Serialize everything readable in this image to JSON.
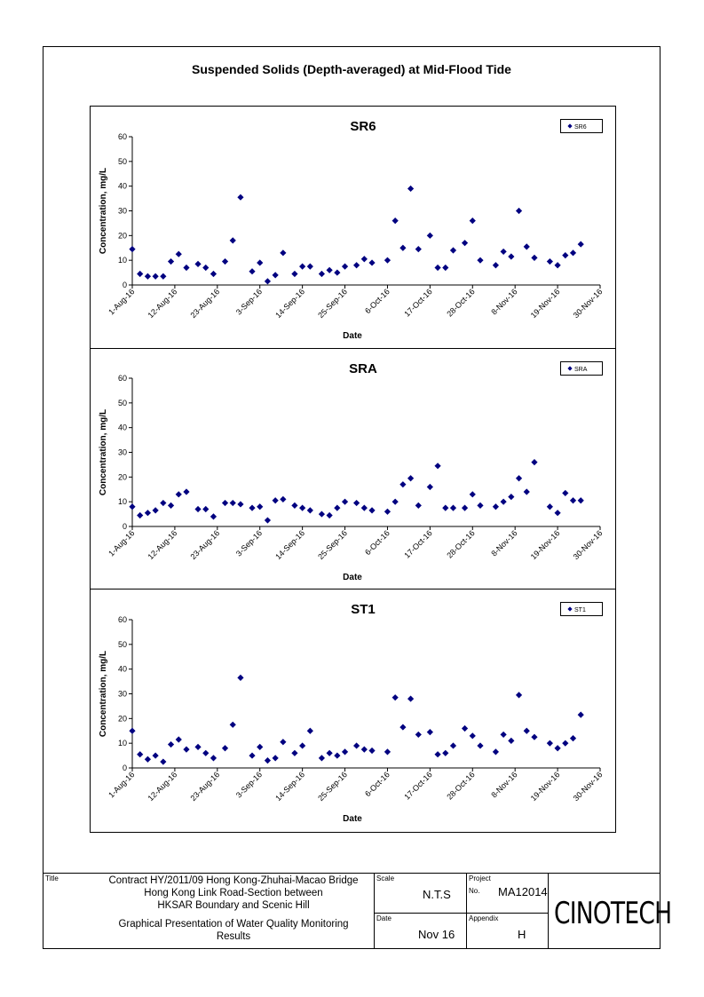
{
  "page": {
    "title": "Suspended Solids (Depth-averaged) at Mid-Flood Tide"
  },
  "chart_data": [
    {
      "type": "scatter",
      "title": "SR6",
      "xlabel": "Date",
      "ylabel": "Concentration, mg/L",
      "ylim": [
        0,
        60
      ],
      "yticks": [
        0,
        10,
        20,
        30,
        40,
        50,
        60
      ],
      "xlim": [
        "1-Aug-16",
        "30-Nov-16"
      ],
      "xticks": [
        "1-Aug-16",
        "12-Aug-16",
        "23-Aug-16",
        "3-Sep-16",
        "14-Sep-16",
        "25-Sep-16",
        "6-Oct-16",
        "17-Oct-16",
        "28-Oct-16",
        "8-Nov-16",
        "19-Nov-16",
        "30-Nov-16"
      ],
      "legend": "top-right",
      "series": [
        {
          "name": "SR6",
          "marker": "diamond",
          "color": "#000080",
          "points": [
            [
              "1-Aug-16",
              14.5
            ],
            [
              "3-Aug-16",
              4.5
            ],
            [
              "5-Aug-16",
              3.5
            ],
            [
              "7-Aug-16",
              3.5
            ],
            [
              "9-Aug-16",
              3.5
            ],
            [
              "11-Aug-16",
              9.5
            ],
            [
              "13-Aug-16",
              12.5
            ],
            [
              "15-Aug-16",
              7
            ],
            [
              "18-Aug-16",
              8.5
            ],
            [
              "20-Aug-16",
              7
            ],
            [
              "22-Aug-16",
              4.5
            ],
            [
              "25-Aug-16",
              9.5
            ],
            [
              "27-Aug-16",
              18
            ],
            [
              "29-Aug-16",
              35.5
            ],
            [
              "1-Sep-16",
              5.5
            ],
            [
              "3-Sep-16",
              9
            ],
            [
              "5-Sep-16",
              1.5
            ],
            [
              "7-Sep-16",
              4
            ],
            [
              "9-Sep-16",
              13
            ],
            [
              "12-Sep-16",
              4.5
            ],
            [
              "14-Sep-16",
              7.5
            ],
            [
              "16-Sep-16",
              7.5
            ],
            [
              "19-Sep-16",
              4.5
            ],
            [
              "21-Sep-16",
              6
            ],
            [
              "23-Sep-16",
              5
            ],
            [
              "25-Sep-16",
              7.5
            ],
            [
              "28-Sep-16",
              8
            ],
            [
              "30-Sep-16",
              10.5
            ],
            [
              "2-Oct-16",
              9
            ],
            [
              "6-Oct-16",
              10
            ],
            [
              "8-Oct-16",
              26
            ],
            [
              "10-Oct-16",
              15
            ],
            [
              "12-Oct-16",
              39
            ],
            [
              "14-Oct-16",
              14.5
            ],
            [
              "17-Oct-16",
              20
            ],
            [
              "19-Oct-16",
              7
            ],
            [
              "21-Oct-16",
              7
            ],
            [
              "23-Oct-16",
              14
            ],
            [
              "26-Oct-16",
              17
            ],
            [
              "28-Oct-16",
              26
            ],
            [
              "30-Oct-16",
              10
            ],
            [
              "3-Nov-16",
              8
            ],
            [
              "5-Nov-16",
              13.5
            ],
            [
              "7-Nov-16",
              11.5
            ],
            [
              "9-Nov-16",
              30
            ],
            [
              "11-Nov-16",
              15.5
            ],
            [
              "13-Nov-16",
              11
            ],
            [
              "17-Nov-16",
              9.5
            ],
            [
              "19-Nov-16",
              8
            ],
            [
              "21-Nov-16",
              12
            ],
            [
              "23-Nov-16",
              13
            ],
            [
              "25-Nov-16",
              16.5
            ]
          ]
        }
      ]
    },
    {
      "type": "scatter",
      "title": "SRA",
      "xlabel": "Date",
      "ylabel": "Concentration, mg/L",
      "ylim": [
        0,
        60
      ],
      "yticks": [
        0,
        10,
        20,
        30,
        40,
        50,
        60
      ],
      "xlim": [
        "1-Aug-16",
        "30-Nov-16"
      ],
      "xticks": [
        "1-Aug-16",
        "12-Aug-16",
        "23-Aug-16",
        "3-Sep-16",
        "14-Sep-16",
        "25-Sep-16",
        "6-Oct-16",
        "17-Oct-16",
        "28-Oct-16",
        "8-Nov-16",
        "19-Nov-16",
        "30-Nov-16"
      ],
      "legend": "top-right",
      "series": [
        {
          "name": "SRA",
          "marker": "diamond",
          "color": "#000080",
          "points": [
            [
              "1-Aug-16",
              8
            ],
            [
              "3-Aug-16",
              4.5
            ],
            [
              "5-Aug-16",
              5.5
            ],
            [
              "7-Aug-16",
              6.5
            ],
            [
              "9-Aug-16",
              9.5
            ],
            [
              "11-Aug-16",
              8.5
            ],
            [
              "13-Aug-16",
              13
            ],
            [
              "15-Aug-16",
              14
            ],
            [
              "18-Aug-16",
              7
            ],
            [
              "20-Aug-16",
              7
            ],
            [
              "22-Aug-16",
              4
            ],
            [
              "25-Aug-16",
              9.5
            ],
            [
              "27-Aug-16",
              9.5
            ],
            [
              "29-Aug-16",
              9
            ],
            [
              "1-Sep-16",
              7.5
            ],
            [
              "3-Sep-16",
              8
            ],
            [
              "5-Sep-16",
              2.5
            ],
            [
              "7-Sep-16",
              10.5
            ],
            [
              "9-Sep-16",
              11
            ],
            [
              "12-Sep-16",
              8.5
            ],
            [
              "14-Sep-16",
              7.5
            ],
            [
              "16-Sep-16",
              6.5
            ],
            [
              "19-Sep-16",
              5
            ],
            [
              "21-Sep-16",
              4.5
            ],
            [
              "23-Sep-16",
              7.5
            ],
            [
              "25-Sep-16",
              10
            ],
            [
              "28-Sep-16",
              9.5
            ],
            [
              "30-Sep-16",
              7.5
            ],
            [
              "2-Oct-16",
              6.5
            ],
            [
              "6-Oct-16",
              6
            ],
            [
              "8-Oct-16",
              10
            ],
            [
              "10-Oct-16",
              17
            ],
            [
              "12-Oct-16",
              19.5
            ],
            [
              "14-Oct-16",
              8.5
            ],
            [
              "17-Oct-16",
              16
            ],
            [
              "19-Oct-16",
              24.5
            ],
            [
              "21-Oct-16",
              7.5
            ],
            [
              "23-Oct-16",
              7.5
            ],
            [
              "26-Oct-16",
              7.5
            ],
            [
              "28-Oct-16",
              13
            ],
            [
              "30-Oct-16",
              8.5
            ],
            [
              "3-Nov-16",
              8
            ],
            [
              "5-Nov-16",
              10
            ],
            [
              "7-Nov-16",
              12
            ],
            [
              "9-Nov-16",
              19.5
            ],
            [
              "11-Nov-16",
              14
            ],
            [
              "13-Nov-16",
              26
            ],
            [
              "17-Nov-16",
              8
            ],
            [
              "19-Nov-16",
              5.5
            ],
            [
              "21-Nov-16",
              13.5
            ],
            [
              "23-Nov-16",
              10.5
            ],
            [
              "25-Nov-16",
              10.5
            ]
          ]
        }
      ]
    },
    {
      "type": "scatter",
      "title": "ST1",
      "xlabel": "Date",
      "ylabel": "Concentration, mg/L",
      "ylim": [
        0,
        60
      ],
      "yticks": [
        0,
        10,
        20,
        30,
        40,
        50,
        60
      ],
      "xlim": [
        "1-Aug-16",
        "30-Nov-16"
      ],
      "xticks": [
        "1-Aug-16",
        "12-Aug-16",
        "23-Aug-16",
        "3-Sep-16",
        "14-Sep-16",
        "25-Sep-16",
        "6-Oct-16",
        "17-Oct-16",
        "28-Oct-16",
        "8-Nov-16",
        "19-Nov-16",
        "30-Nov-16"
      ],
      "legend": "top-right",
      "series": [
        {
          "name": "ST1",
          "marker": "diamond",
          "color": "#000080",
          "points": [
            [
              "1-Aug-16",
              15
            ],
            [
              "3-Aug-16",
              5.5
            ],
            [
              "5-Aug-16",
              3.5
            ],
            [
              "7-Aug-16",
              5
            ],
            [
              "9-Aug-16",
              2.5
            ],
            [
              "11-Aug-16",
              9.5
            ],
            [
              "13-Aug-16",
              11.5
            ],
            [
              "15-Aug-16",
              7.5
            ],
            [
              "18-Aug-16",
              8.5
            ],
            [
              "20-Aug-16",
              6
            ],
            [
              "22-Aug-16",
              4
            ],
            [
              "25-Aug-16",
              8
            ],
            [
              "27-Aug-16",
              17.5
            ],
            [
              "29-Aug-16",
              36.5
            ],
            [
              "1-Sep-16",
              5
            ],
            [
              "3-Sep-16",
              8.5
            ],
            [
              "5-Sep-16",
              3
            ],
            [
              "7-Sep-16",
              4
            ],
            [
              "9-Sep-16",
              10.5
            ],
            [
              "12-Sep-16",
              6
            ],
            [
              "14-Sep-16",
              9
            ],
            [
              "16-Sep-16",
              15
            ],
            [
              "19-Sep-16",
              4
            ],
            [
              "21-Sep-16",
              6
            ],
            [
              "23-Sep-16",
              5
            ],
            [
              "25-Sep-16",
              6.5
            ],
            [
              "28-Sep-16",
              9
            ],
            [
              "30-Sep-16",
              7.5
            ],
            [
              "2-Oct-16",
              7
            ],
            [
              "6-Oct-16",
              6.5
            ],
            [
              "8-Oct-16",
              28.5
            ],
            [
              "10-Oct-16",
              16.5
            ],
            [
              "12-Oct-16",
              28
            ],
            [
              "14-Oct-16",
              13.5
            ],
            [
              "17-Oct-16",
              14.5
            ],
            [
              "19-Oct-16",
              5.5
            ],
            [
              "21-Oct-16",
              6
            ],
            [
              "23-Oct-16",
              9
            ],
            [
              "26-Oct-16",
              16
            ],
            [
              "28-Oct-16",
              13
            ],
            [
              "30-Oct-16",
              9
            ],
            [
              "3-Nov-16",
              6.5
            ],
            [
              "5-Nov-16",
              13.5
            ],
            [
              "7-Nov-16",
              11
            ],
            [
              "9-Nov-16",
              29.5
            ],
            [
              "11-Nov-16",
              15
            ],
            [
              "13-Nov-16",
              12.5
            ],
            [
              "17-Nov-16",
              10
            ],
            [
              "19-Nov-16",
              8
            ],
            [
              "21-Nov-16",
              10
            ],
            [
              "23-Nov-16",
              12
            ],
            [
              "25-Nov-16",
              21.5
            ]
          ]
        }
      ]
    }
  ],
  "title_block": {
    "title_label": "Title",
    "title_lines": [
      "Contract HY/2011/09 Hong Kong-Zhuhai-Macao Bridge",
      "Hong Kong Link Road-Section between",
      "HKSAR Boundary and Scenic Hill"
    ],
    "subtitle_lines": [
      "Graphical Presentation of Water Quality Monitoring",
      "Results"
    ],
    "scale_label": "Scale",
    "scale_value": "N.T.S",
    "date_label": "Date",
    "date_value": "Nov 16",
    "project_label": "Project",
    "project_no_label": "No.",
    "project_no_value": "MA12014",
    "appendix_label": "Appendix",
    "appendix_value": "H",
    "logo_text": "CINOTECH"
  }
}
